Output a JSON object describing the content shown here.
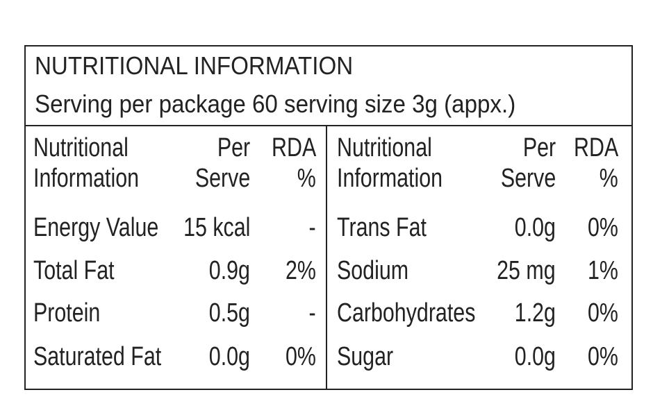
{
  "header": {
    "title": "NUTRITIONAL INFORMATION",
    "subtitle": "Serving per package 60 serving size 3g (appx.)"
  },
  "tables": [
    {
      "columns": [
        [
          "Nutritional",
          "Information"
        ],
        [
          "Per",
          "Serve"
        ],
        [
          "RDA",
          "%"
        ]
      ],
      "rows": [
        [
          "Energy Value",
          "15 kcal",
          "-"
        ],
        [
          "Total Fat",
          "0.9g",
          "2%"
        ],
        [
          "Protein",
          "0.5g",
          "-"
        ],
        [
          "Saturated Fat",
          "0.0g",
          "0%"
        ]
      ]
    },
    {
      "columns": [
        [
          "Nutritional",
          "Information"
        ],
        [
          "Per",
          "Serve"
        ],
        [
          "RDA",
          "%"
        ]
      ],
      "rows": [
        [
          "Trans Fat",
          "0.0g",
          "0%"
        ],
        [
          "Sodium",
          "25 mg",
          "1%"
        ],
        [
          "Carbohydrates",
          "1.2g",
          "0%"
        ],
        [
          "Sugar",
          "0.0g",
          "0%"
        ]
      ]
    }
  ]
}
